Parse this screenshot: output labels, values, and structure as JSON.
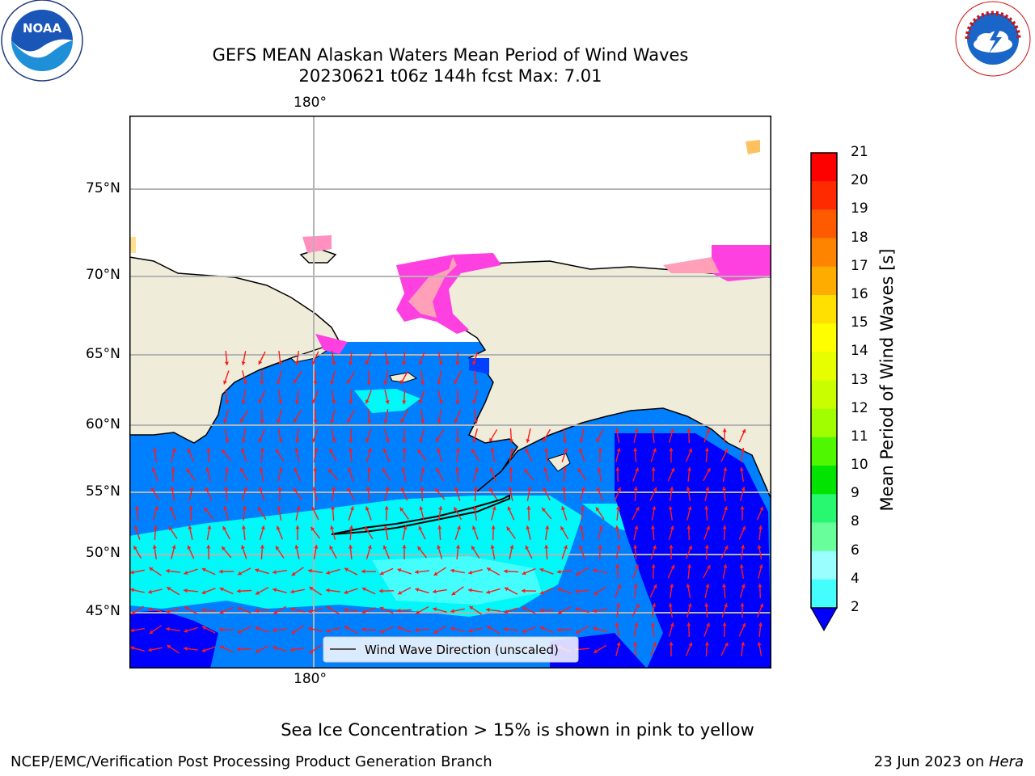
{
  "title": {
    "line1": "GEFS MEAN Alaskan Waters Mean Period of Wind Waves",
    "line2": "20230621 t06z 144h fcst   Max: 7.01"
  },
  "map": {
    "lon_labels": [
      "180°",
      "180°"
    ],
    "lat_labels": [
      "75°N",
      "70°N",
      "65°N",
      "60°N",
      "55°N",
      "50°N",
      "45°N"
    ],
    "legend_text": "Wind Wave Direction (unscaled)",
    "land_color": "#efecda",
    "arrow_color": "#ff1a1a"
  },
  "colorbar": {
    "label": "Mean Period of Wind Waves [s]",
    "ticks": [
      "21",
      "20",
      "19",
      "18",
      "17",
      "16",
      "15",
      "14",
      "13",
      "12",
      "11",
      "10",
      "9",
      "8",
      "6",
      "4",
      "2"
    ],
    "colors": [
      "#fd0000",
      "#fe2a00",
      "#fe5a00",
      "#fe8400",
      "#ffac00",
      "#ffe000",
      "#fefe00",
      "#e6fe00",
      "#c8fe00",
      "#a0fe00",
      "#50f800",
      "#00e400",
      "#28f870",
      "#68fe9c",
      "#9afefe",
      "#44fefe",
      "#00f8f8",
      "#0080ff",
      "#0000ff"
    ],
    "min_arrow_color": "#0000ff"
  },
  "logos": {
    "noaa": "NOAA",
    "noaa_ring": "NATIONAL OCEANIC AND ATMOSPHERIC ADMINISTRATION · U.S. DEPARTMENT OF COMMERCE",
    "nws_ring": "NATIONAL WEATHER SERVICE"
  },
  "notes": {
    "sea_ice": "Sea Ice Concentration > 15% is shown in pink to yellow"
  },
  "footer": {
    "left": "NCEP/EMC/Verification Post Processing Product Generation Branch",
    "date": "23 Jun 2023 on ",
    "machine": "Hera"
  }
}
